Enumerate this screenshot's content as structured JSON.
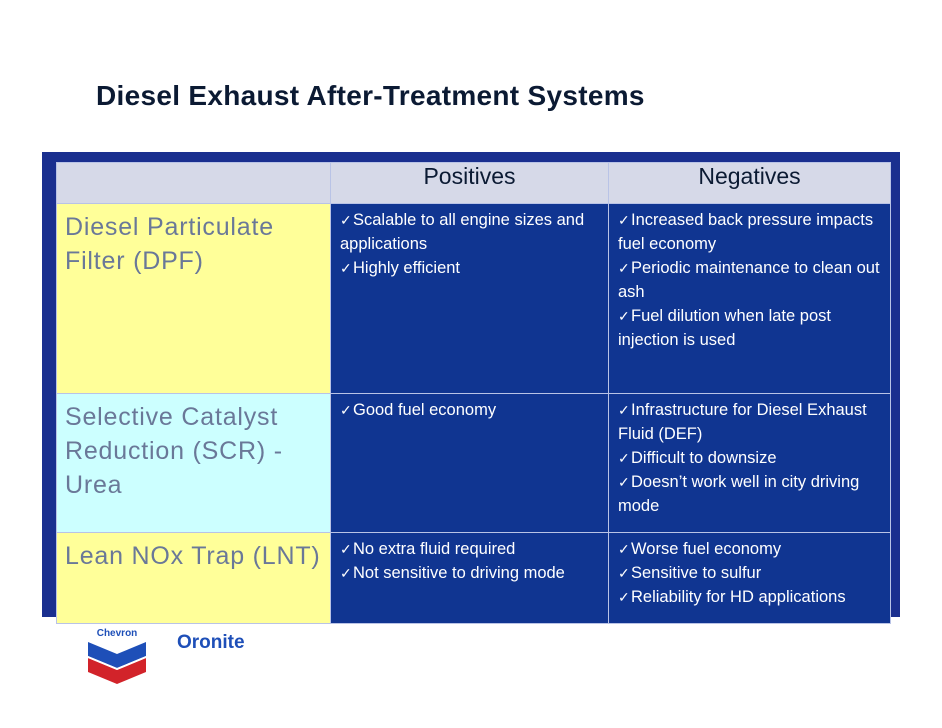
{
  "slide": {
    "title": "Diesel Exhaust After-Treatment Systems"
  },
  "table": {
    "headers": [
      "",
      "Positives",
      "Negatives"
    ],
    "rows": [
      {
        "system": "Diesel Particulate Filter (DPF)",
        "positives": [
          "Scalable to all engine sizes and applications",
          "Highly efficient"
        ],
        "negatives": [
          "Increased back pressure impacts fuel economy",
          "Periodic maintenance to clean out ash",
          "Fuel dilution when late post injection is used"
        ]
      },
      {
        "system": "Selective Catalyst Reduction (SCR) - Urea",
        "positives": [
          "Good fuel economy"
        ],
        "negatives": [
          "Infrastructure for Diesel Exhaust Fluid (DEF)",
          "Difficult to downsize",
          "Doesn’t work well in city driving mode"
        ]
      },
      {
        "system": "Lean NOx Trap (LNT)",
        "positives": [
          "No extra fluid required",
          "Not sensitive to driving mode"
        ],
        "negatives": [
          "Worse fuel economy",
          "Sensitive to sulfur",
          "Reliability for HD applications"
        ]
      }
    ]
  },
  "footer": {
    "logo_text": "Chevron",
    "brand": "Oronite"
  },
  "colors": {
    "panel": "#1a2f8f",
    "cell_blue": "#103591",
    "header_grey": "#d6d9e8",
    "row_yellow": "#ffff99",
    "row_cyan": "#ccffff",
    "chevron_red": "#d2232a",
    "chevron_blue": "#1e4fb8"
  }
}
